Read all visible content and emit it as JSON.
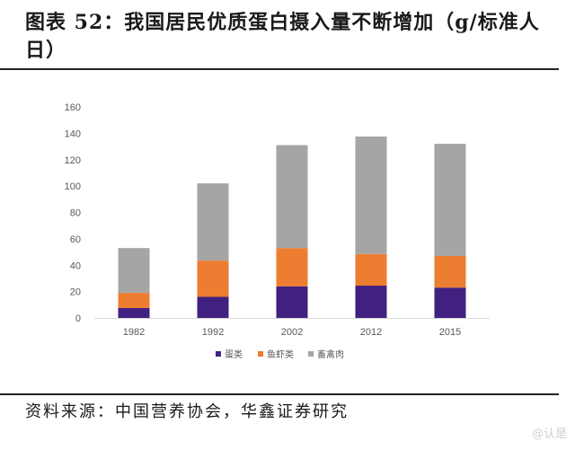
{
  "title": "图表 52：我国居民优质蛋白摄入量不断增加（g/标准人日）",
  "source": "资料来源：中国营养协会，华鑫证券研究",
  "watermark": "@认是",
  "chart_data": {
    "type": "bar",
    "stacked": true,
    "title": "图表 52：我国居民优质蛋白摄入量不断增加（g/标准人日）",
    "xlabel": "",
    "ylabel": "",
    "ylim": [
      0,
      160
    ],
    "yticks": [
      "0",
      "20",
      "40",
      "60",
      "80",
      "100",
      "120",
      "140",
      "160"
    ],
    "categories": [
      "1982",
      "1992",
      "2002",
      "2012",
      "2015"
    ],
    "series": [
      {
        "name": "蛋类",
        "color": "#41217f",
        "values": [
          7.5,
          16,
          24,
          24.5,
          23
        ]
      },
      {
        "name": "鱼虾类",
        "color": "#ed7d31",
        "values": [
          11.5,
          27.5,
          29,
          24,
          24
        ]
      },
      {
        "name": "畜禽肉",
        "color": "#a5a5a5",
        "values": [
          34,
          58.5,
          78,
          89,
          85
        ]
      }
    ],
    "legend_position": "bottom",
    "grid": false
  }
}
